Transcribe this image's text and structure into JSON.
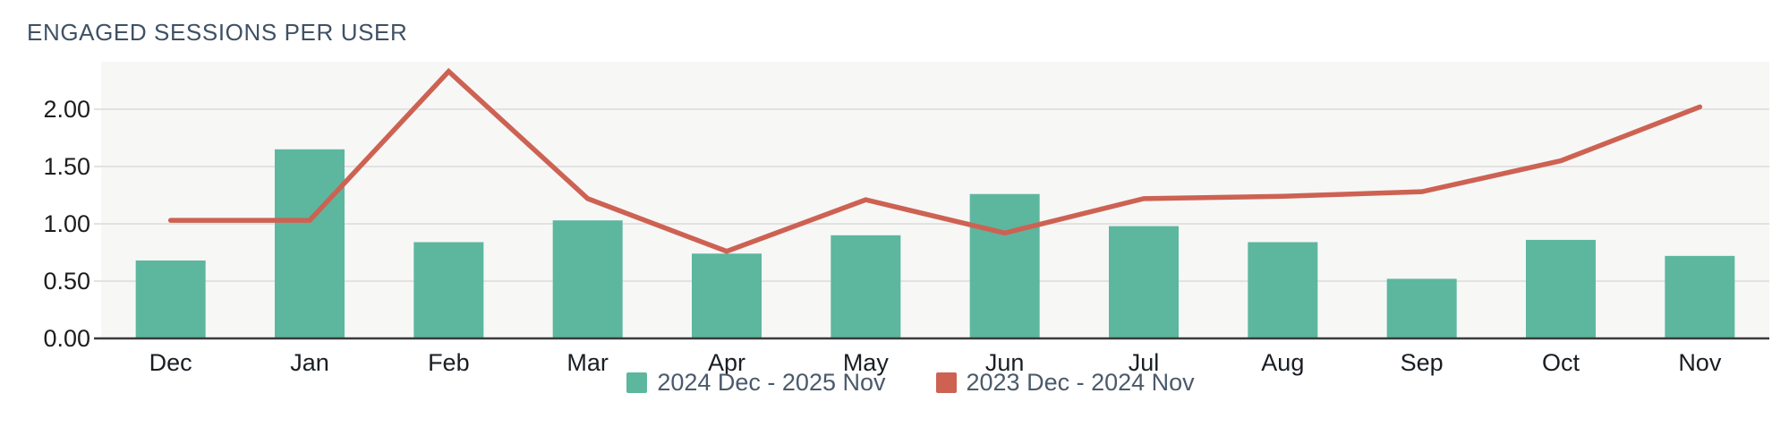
{
  "title": "ENGAGED SESSIONS PER USER",
  "legend": {
    "items": [
      {
        "label": "2024 Dec - 2025 Nov",
        "swatch_color": "#5cb79e"
      },
      {
        "label": "2023 Dec - 2024 Nov",
        "swatch_color": "#cd6253"
      }
    ]
  },
  "chart_data": {
    "type": "bar",
    "title": "ENGAGED SESSIONS PER USER",
    "categories": [
      "Dec",
      "Jan",
      "Feb",
      "Mar",
      "Apr",
      "May",
      "Jun",
      "Jul",
      "Aug",
      "Sep",
      "Oct",
      "Nov"
    ],
    "series": [
      {
        "name": "2024 Dec - 2025 Nov",
        "type": "bar",
        "color": "#5cb79e",
        "values": [
          0.68,
          1.65,
          0.84,
          1.03,
          0.74,
          0.9,
          1.26,
          0.98,
          0.84,
          0.52,
          0.86,
          0.72
        ]
      },
      {
        "name": "2023 Dec - 2024 Nov",
        "type": "line",
        "color": "#cd6253",
        "values": [
          1.03,
          1.03,
          2.33,
          1.22,
          0.76,
          1.21,
          0.92,
          1.22,
          1.24,
          1.28,
          1.55,
          2.02
        ]
      }
    ],
    "xlabel": "",
    "ylabel": "",
    "ylim": [
      0,
      2.41
    ],
    "y_ticks": [
      {
        "value": 0.0,
        "label": "0.00"
      },
      {
        "value": 0.5,
        "label": "0.50"
      },
      {
        "value": 1.0,
        "label": "1.00"
      },
      {
        "value": 1.5,
        "label": "1.50"
      },
      {
        "value": 2.0,
        "label": "2.00"
      }
    ],
    "grid": true,
    "legend_position": "bottom",
    "colors": {
      "plot_background": "#f7f7f6",
      "gridline": "#e2e2e2",
      "axis_line": "#3a3a3a",
      "y_tick_text": "#1d1d1f",
      "x_tick_text": "#191e23",
      "title_text": "#3f5164"
    }
  }
}
